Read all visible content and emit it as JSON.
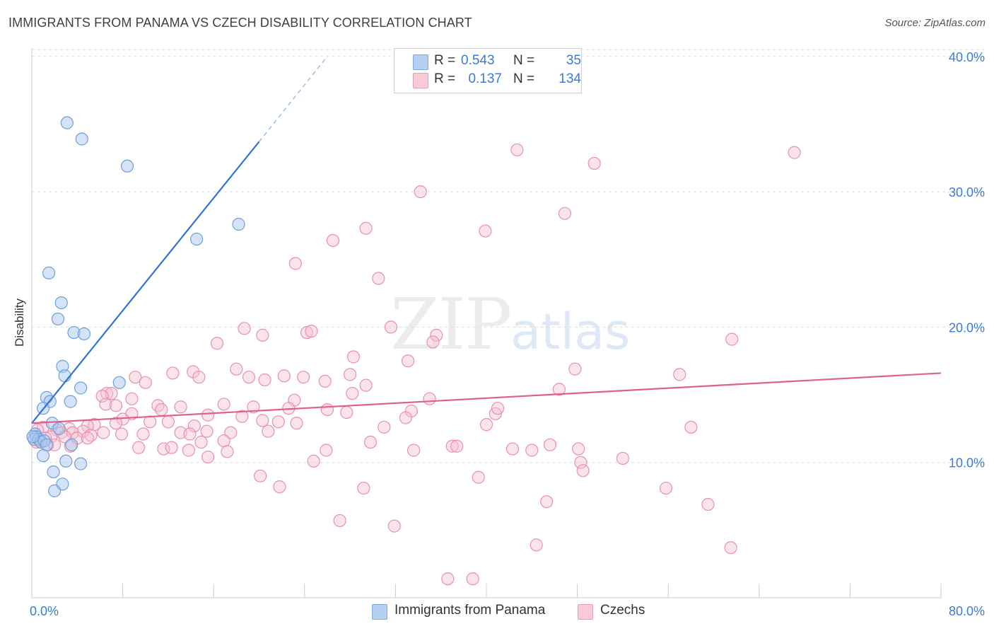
{
  "title": "IMMIGRANTS FROM PANAMA VS CZECH DISABILITY CORRELATION CHART",
  "source": "Source: ZipAtlas.com",
  "watermark": {
    "zip": "ZIP",
    "atlas": "atlas"
  },
  "legend": {
    "rows": [
      {
        "r_label": "R =",
        "r_value": "0.543",
        "n_label": "N =",
        "n_value": "35"
      },
      {
        "r_label": "R =",
        "r_value": "0.137",
        "n_label": "N =",
        "n_value": "134"
      }
    ]
  },
  "bottom_legend": [
    {
      "label": "Immigrants from Panama"
    },
    {
      "label": "Czechs"
    }
  ],
  "colors": {
    "panama_fill": "#a9c8ef",
    "panama_stroke": "#6f9fd8",
    "panama_line": "#2f74d0",
    "czech_fill": "#f7c0d0",
    "czech_stroke": "#e890ad",
    "czech_line": "#e0608c",
    "tick_label": "#3a7bd5",
    "grid": "#dddddd"
  },
  "chart_data": {
    "type": "scatter",
    "title": "IMMIGRANTS FROM PANAMA VS CZECH DISABILITY CORRELATION CHART",
    "xlabel": "",
    "ylabel": "Disability",
    "xlim": [
      0,
      80
    ],
    "ylim": [
      0,
      42
    ],
    "x_tick_labels": [
      "0.0%",
      "80.0%"
    ],
    "y_ticks": [
      10,
      20,
      30,
      40
    ],
    "y_tick_labels": [
      "10.0%",
      "20.0%",
      "30.0%",
      "40.0%"
    ],
    "grid": true,
    "legend_position": "top-center",
    "series": [
      {
        "name": "Immigrants from Panama",
        "r": 0.543,
        "n": 35,
        "trend": {
          "x0": 0.0,
          "y0": 12.9,
          "x1": 20.0,
          "y1": 33.7,
          "dash_x1": 26.0,
          "dash_y1": 40.0
        },
        "points": [
          [
            3.1,
            35.1
          ],
          [
            4.4,
            33.9
          ],
          [
            8.4,
            31.9
          ],
          [
            14.5,
            26.5
          ],
          [
            18.2,
            27.6
          ],
          [
            1.5,
            24.0
          ],
          [
            2.6,
            21.8
          ],
          [
            2.3,
            20.6
          ],
          [
            3.7,
            19.6
          ],
          [
            4.6,
            19.5
          ],
          [
            2.7,
            17.1
          ],
          [
            2.9,
            16.4
          ],
          [
            7.7,
            15.9
          ],
          [
            4.3,
            15.5
          ],
          [
            1.3,
            14.8
          ],
          [
            1.6,
            14.5
          ],
          [
            3.4,
            14.5
          ],
          [
            1.0,
            14.0
          ],
          [
            1.8,
            12.9
          ],
          [
            2.4,
            12.5
          ],
          [
            0.3,
            12.1
          ],
          [
            0.4,
            11.9
          ],
          [
            0.2,
            11.7
          ],
          [
            0.6,
            11.7
          ],
          [
            0.8,
            11.5
          ],
          [
            1.1,
            11.6
          ],
          [
            1.3,
            11.3
          ],
          [
            3.5,
            11.3
          ],
          [
            1.0,
            10.5
          ],
          [
            3.0,
            10.1
          ],
          [
            4.3,
            9.9
          ],
          [
            1.9,
            9.3
          ],
          [
            2.7,
            8.4
          ],
          [
            2.0,
            7.9
          ],
          [
            0.1,
            11.9
          ]
        ]
      },
      {
        "name": "Czechs",
        "r": 0.137,
        "n": 134,
        "trend": {
          "x0": 0.0,
          "y0": 12.9,
          "x1": 80.0,
          "y1": 16.6
        },
        "points": [
          [
            42.7,
            33.1
          ],
          [
            49.5,
            32.1
          ],
          [
            67.1,
            32.9
          ],
          [
            34.2,
            30.0
          ],
          [
            46.9,
            28.4
          ],
          [
            29.4,
            27.3
          ],
          [
            39.9,
            27.1
          ],
          [
            26.5,
            26.4
          ],
          [
            23.2,
            24.7
          ],
          [
            30.5,
            23.6
          ],
          [
            18.7,
            19.9
          ],
          [
            20.3,
            19.4
          ],
          [
            24.2,
            19.6
          ],
          [
            24.6,
            19.7
          ],
          [
            31.6,
            20.0
          ],
          [
            35.6,
            19.4
          ],
          [
            35.3,
            18.9
          ],
          [
            16.3,
            18.8
          ],
          [
            28.3,
            17.8
          ],
          [
            33.1,
            17.5
          ],
          [
            61.6,
            19.1
          ],
          [
            47.8,
            16.9
          ],
          [
            57.0,
            16.5
          ],
          [
            12.4,
            16.6
          ],
          [
            14.2,
            16.7
          ],
          [
            18.0,
            16.9
          ],
          [
            9.1,
            16.3
          ],
          [
            14.7,
            16.3
          ],
          [
            19.1,
            16.3
          ],
          [
            20.5,
            16.1
          ],
          [
            22.2,
            16.4
          ],
          [
            23.9,
            16.3
          ],
          [
            25.8,
            16.0
          ],
          [
            28.0,
            16.5
          ],
          [
            29.4,
            15.7
          ],
          [
            10.0,
            15.9
          ],
          [
            6.6,
            15.1
          ],
          [
            7.0,
            15.1
          ],
          [
            6.2,
            14.9
          ],
          [
            28.2,
            15.1
          ],
          [
            35.0,
            14.7
          ],
          [
            46.4,
            15.4
          ],
          [
            23.1,
            14.6
          ],
          [
            6.5,
            14.3
          ],
          [
            8.8,
            14.7
          ],
          [
            11.1,
            14.2
          ],
          [
            13.1,
            14.1
          ],
          [
            16.9,
            14.3
          ],
          [
            19.5,
            14.1
          ],
          [
            22.6,
            14.0
          ],
          [
            26.0,
            13.9
          ],
          [
            27.7,
            13.7
          ],
          [
            33.4,
            13.8
          ],
          [
            40.8,
            13.6
          ],
          [
            41.0,
            14.0
          ],
          [
            7.4,
            14.2
          ],
          [
            8.8,
            13.6
          ],
          [
            11.4,
            13.9
          ],
          [
            15.5,
            13.5
          ],
          [
            18.5,
            13.4
          ],
          [
            20.3,
            13.1
          ],
          [
            21.7,
            13.0
          ],
          [
            23.3,
            12.9
          ],
          [
            32.9,
            13.3
          ],
          [
            40.0,
            12.8
          ],
          [
            58.0,
            12.6
          ],
          [
            31.0,
            12.6
          ],
          [
            14.3,
            12.7
          ],
          [
            12.0,
            13.0
          ],
          [
            10.4,
            13.0
          ],
          [
            8.0,
            13.2
          ],
          [
            7.4,
            12.9
          ],
          [
            5.5,
            12.8
          ],
          [
            4.9,
            12.7
          ],
          [
            3.3,
            12.5
          ],
          [
            2.2,
            12.4
          ],
          [
            1.0,
            12.6
          ],
          [
            0.5,
            12.4
          ],
          [
            6.3,
            12.2
          ],
          [
            7.9,
            12.1
          ],
          [
            9.8,
            12.1
          ],
          [
            13.1,
            12.2
          ],
          [
            15.4,
            12.3
          ],
          [
            17.5,
            12.2
          ],
          [
            20.8,
            12.3
          ],
          [
            2.6,
            12.2
          ],
          [
            3.6,
            12.2
          ],
          [
            4.5,
            12.3
          ],
          [
            5.2,
            12.0
          ],
          [
            4.0,
            11.8
          ],
          [
            2.9,
            11.9
          ],
          [
            1.7,
            11.9
          ],
          [
            1.2,
            11.8
          ],
          [
            0.8,
            11.6
          ],
          [
            0.4,
            11.5
          ],
          [
            1.4,
            11.3
          ],
          [
            2.0,
            11.3
          ],
          [
            3.4,
            11.2
          ],
          [
            4.9,
            11.8
          ],
          [
            16.9,
            11.6
          ],
          [
            14.9,
            11.5
          ],
          [
            29.8,
            11.5
          ],
          [
            37.0,
            11.2
          ],
          [
            37.4,
            11.2
          ],
          [
            45.6,
            11.3
          ],
          [
            11.6,
            11.0
          ],
          [
            9.4,
            11.1
          ],
          [
            12.3,
            11.1
          ],
          [
            13.8,
            10.9
          ],
          [
            17.2,
            10.8
          ],
          [
            25.9,
            10.9
          ],
          [
            33.6,
            10.9
          ],
          [
            42.3,
            11.0
          ],
          [
            44.0,
            10.9
          ],
          [
            48.1,
            11.0
          ],
          [
            15.5,
            10.4
          ],
          [
            24.8,
            10.1
          ],
          [
            48.3,
            10.0
          ],
          [
            52.0,
            10.3
          ],
          [
            48.5,
            9.4
          ],
          [
            20.1,
            9.0
          ],
          [
            39.3,
            8.9
          ],
          [
            21.8,
            8.2
          ],
          [
            29.2,
            8.1
          ],
          [
            55.8,
            8.1
          ],
          [
            45.3,
            7.1
          ],
          [
            59.5,
            6.9
          ],
          [
            27.1,
            5.7
          ],
          [
            31.9,
            5.3
          ],
          [
            44.4,
            3.9
          ],
          [
            61.5,
            3.7
          ],
          [
            36.6,
            1.4
          ],
          [
            38.8,
            1.4
          ],
          [
            13.9,
            12.1
          ]
        ]
      }
    ]
  }
}
